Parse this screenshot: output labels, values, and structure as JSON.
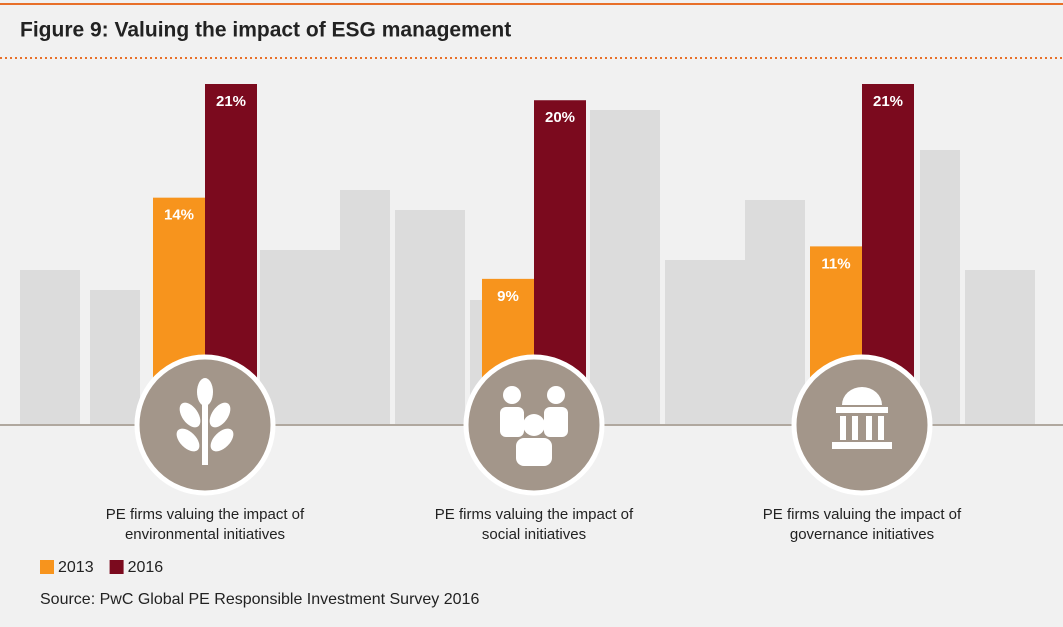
{
  "chart_data": {
    "type": "bar",
    "title": "Figure 9: Valuing the impact of ESG management",
    "categories": [
      "PE firms valuing the impact of environmental initiatives",
      "PE firms valuing the impact of social initiatives",
      "PE firms valuing the impact of governance initiatives"
    ],
    "series": [
      {
        "name": "2013",
        "color": "#f7941d",
        "values": [
          14,
          9,
          11
        ],
        "value_labels": [
          "14%",
          "9%",
          "11%"
        ]
      },
      {
        "name": "2016",
        "color": "#7b0a1e",
        "values": [
          21,
          20,
          21
        ],
        "value_labels": [
          "21%",
          "20%",
          "21%"
        ]
      }
    ],
    "source": "Source: PwC Global PE Responsible Investment Survey 2016"
  }
}
